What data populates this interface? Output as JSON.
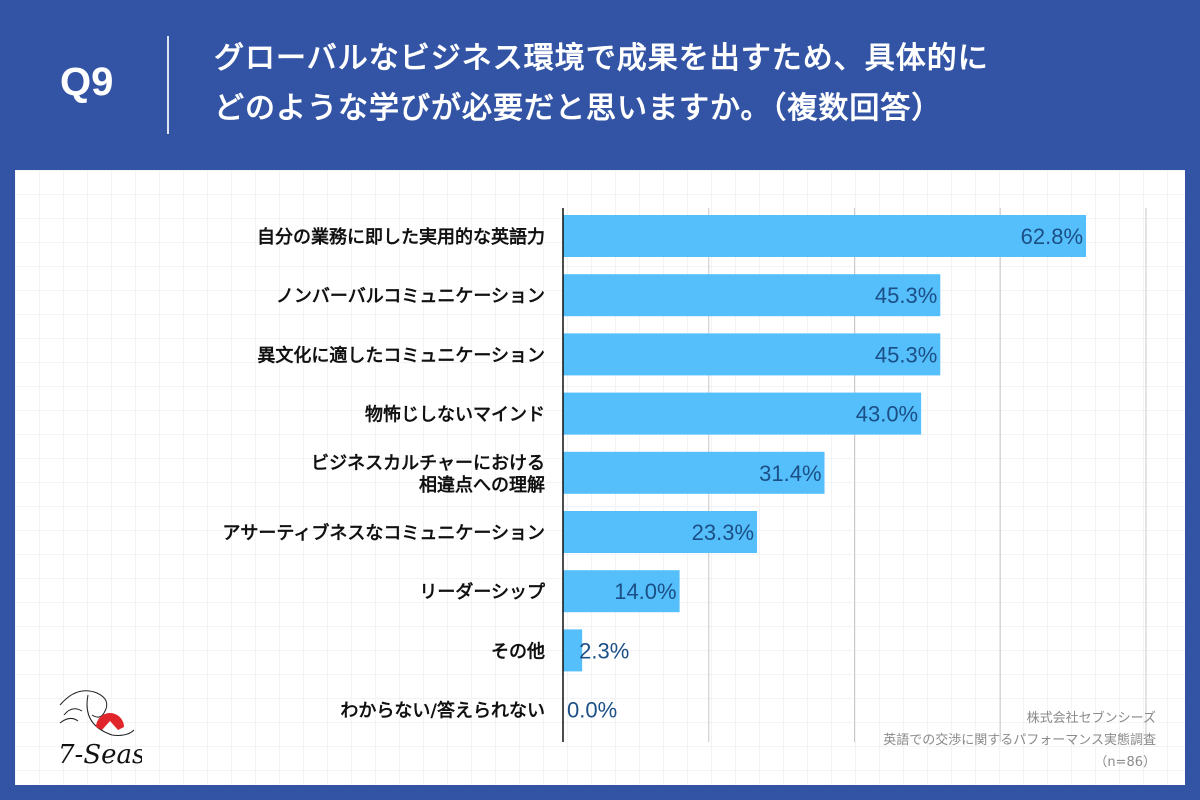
{
  "header": {
    "q_label": "Q9",
    "title_line1": "グローバルなビジネス環境で成果を出すため、具体的に",
    "title_line2": "どのような学びが必要だと思いますか。（複数回答）"
  },
  "chart_data": {
    "type": "bar",
    "orientation": "horizontal",
    "categories": [
      [
        "自分の業務に即した実用的な英語力"
      ],
      [
        "ノンバーバルコミュニケーション"
      ],
      [
        "異文化に適したコミュニケーション"
      ],
      [
        "物怖じしないマインド"
      ],
      [
        "ビジネスカルチャーにおける",
        "相違点への理解"
      ],
      [
        "アサーティブネスなコミュニケーション"
      ],
      [
        "リーダーシップ"
      ],
      [
        "その他"
      ],
      [
        "わからない/答えられない"
      ]
    ],
    "values": [
      62.8,
      45.3,
      45.3,
      43.0,
      31.4,
      23.3,
      14.0,
      2.3,
      0.0
    ],
    "value_labels": [
      "62.8%",
      "45.3%",
      "45.3%",
      "43.0%",
      "31.4%",
      "23.3%",
      "14.0%",
      "2.3%",
      "0.0%"
    ],
    "xlim": [
      0,
      70
    ],
    "grid": true,
    "colors": {
      "bar": "#55bffc",
      "value_label": "#1b4f86",
      "background": "#3354a5"
    }
  },
  "footer": {
    "company": "株式会社セブンシーズ",
    "survey": "英語での交渉に関するパフォーマンス実態調査",
    "n": "（n=86）"
  },
  "logo": {
    "text": "7-Seas"
  }
}
